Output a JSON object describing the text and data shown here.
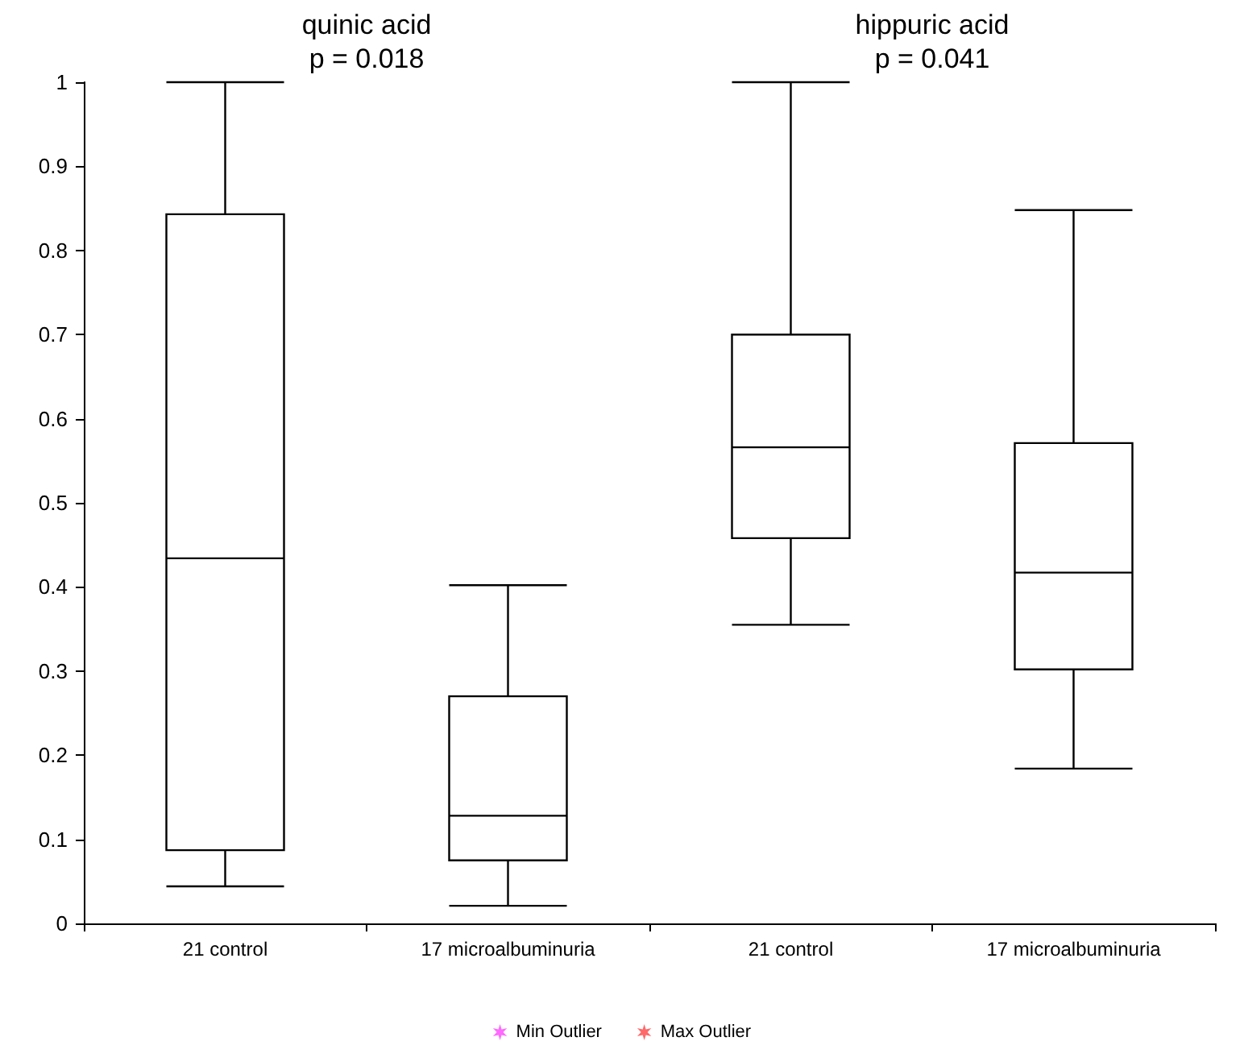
{
  "chart_data": {
    "type": "box",
    "categories": [
      "21 control",
      "17 microalbuminuria",
      "21 control",
      "17 microalbuminuria"
    ],
    "series": [
      {
        "color": "#000000",
        "boxes": [
          {
            "low": 0.044,
            "q1": 0.087,
            "median": 0.434,
            "q3": 0.843,
            "high": 1.0
          },
          {
            "low": 0.021,
            "q1": 0.075,
            "median": 0.128,
            "q3": 0.27,
            "high": 0.402
          },
          {
            "low": 0.355,
            "q1": 0.458,
            "median": 0.566,
            "q3": 0.7,
            "high": 1.0
          },
          {
            "low": 0.184,
            "q1": 0.302,
            "median": 0.417,
            "q3": 0.571,
            "high": 0.848
          }
        ]
      },
      {
        "type": "scatter",
        "name": "Min Outlier",
        "color": "#ff44ff",
        "marker": "star",
        "values": [
          null,
          null,
          null,
          null
        ]
      },
      {
        "type": "scatter",
        "name": "Max Outlier",
        "color": "#ff4444",
        "marker": "star",
        "values": [
          null,
          null,
          null,
          null
        ]
      }
    ],
    "annotations": [
      "quinic acid\np = 0.018",
      "hippuric acid\np = 0.041"
    ],
    "ylim": [
      0,
      1
    ],
    "yticks": [
      0,
      0.1,
      0.2,
      0.3,
      0.4,
      0.5,
      0.6,
      0.7,
      0.8,
      0.9,
      1
    ],
    "grid": false,
    "legend": "bottom"
  }
}
